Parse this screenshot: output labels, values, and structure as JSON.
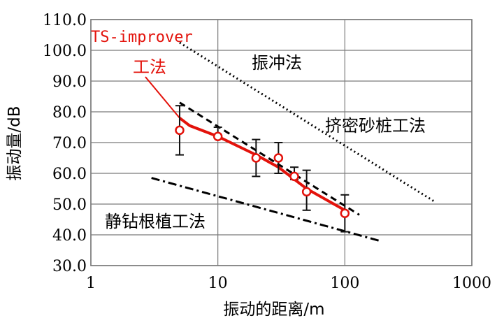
{
  "chart_data": {
    "type": "line",
    "x_scale": "log",
    "xlabel": "振动的距离/m",
    "ylabel": "振动量/dB",
    "xlim": [
      1,
      1000
    ],
    "ylim": [
      30,
      110
    ],
    "grid": true,
    "x_ticks": [
      {
        "value": 1,
        "label": "1"
      },
      {
        "value": 10,
        "label": "10"
      },
      {
        "value": 100,
        "label": "100"
      },
      {
        "value": 1000,
        "label": "1000"
      }
    ],
    "y_ticks": [
      {
        "value": 30,
        "label": "30.0"
      },
      {
        "value": 40,
        "label": "40.0"
      },
      {
        "value": 50,
        "label": "50.0"
      },
      {
        "value": 60,
        "label": "60.0"
      },
      {
        "value": 70,
        "label": "70.0"
      },
      {
        "value": 80,
        "label": "80.0"
      },
      {
        "value": 90,
        "label": "90.0"
      },
      {
        "value": 100,
        "label": "100.0"
      },
      {
        "value": 110,
        "label": "110.0"
      }
    ],
    "series": [
      {
        "name": "挤密砂桩工法",
        "style": "dotted",
        "color": "#000000",
        "x": [
          5,
          500
        ],
        "y": [
          102.5,
          51
        ]
      },
      {
        "name": "振冲法",
        "style": "dashed",
        "color": "#000000",
        "x": [
          5,
          130
        ],
        "y": [
          83,
          46.5
        ]
      },
      {
        "name": "静钻根植工法",
        "style": "dashdot",
        "color": "#000000",
        "x": [
          3,
          190
        ],
        "y": [
          58.5,
          38
        ]
      },
      {
        "name_line1": "TS-improver",
        "name_line2": "工法",
        "style": "solid",
        "color": "#e3120b",
        "x": [
          5,
          10,
          20,
          30,
          40,
          50,
          100
        ],
        "y": [
          74,
          72,
          65,
          65,
          59,
          54,
          47
        ],
        "fit_x": [
          5,
          6,
          10,
          20,
          30,
          50,
          100
        ],
        "fit_y": [
          78,
          75.5,
          72,
          66,
          62,
          55,
          48
        ],
        "error_low": [
          66,
          72,
          59,
          60,
          58,
          48,
          41
        ],
        "error_high": [
          82,
          75,
          71,
          70,
          62,
          61,
          53
        ]
      }
    ]
  }
}
